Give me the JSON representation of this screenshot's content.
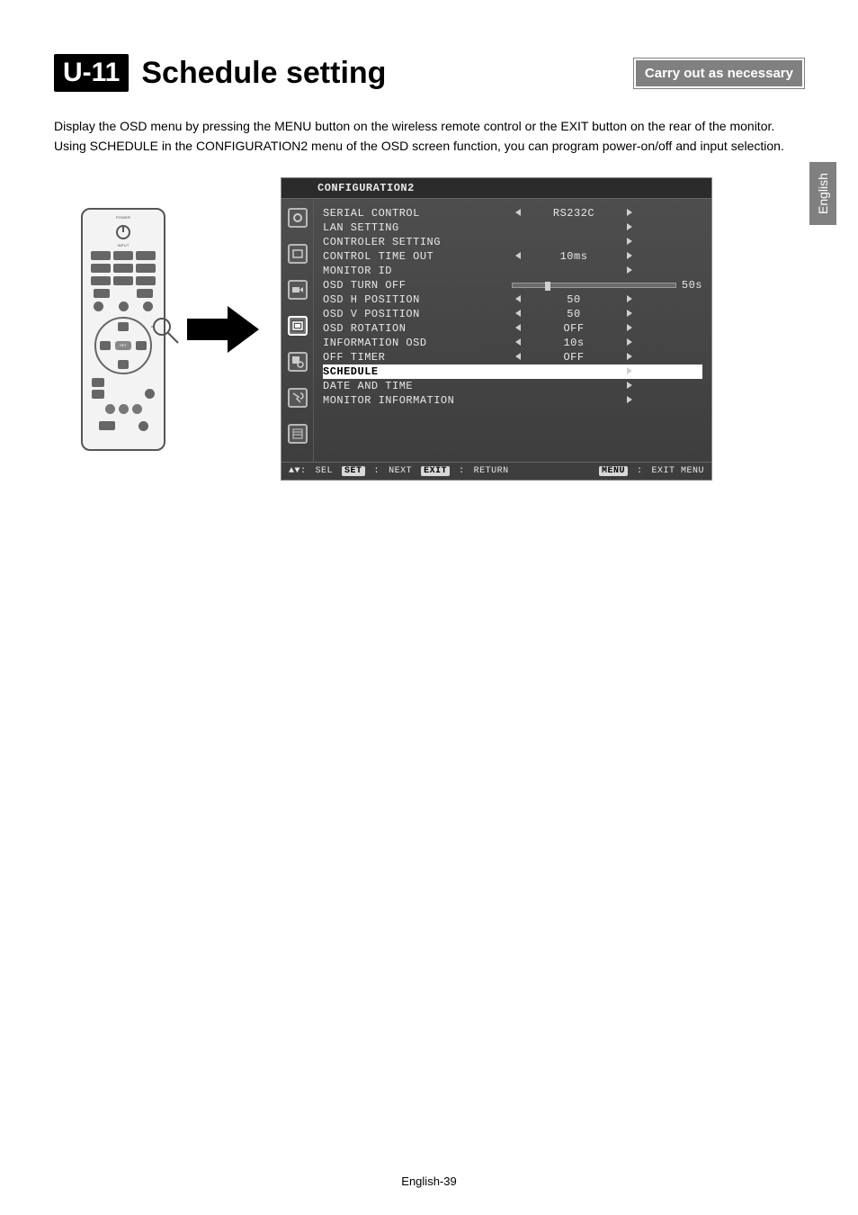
{
  "header": {
    "chip": "U-11",
    "title": "Schedule setting",
    "badge": "Carry out as necessary"
  },
  "intro": {
    "line1": "Display the OSD menu by pressing the MENU button on the wireless remote control or the EXIT button on the rear of the monitor.",
    "line2": "Using SCHEDULE in the CONFIGURATION2 menu of the OSD screen function, you can program power-on/off and input selection."
  },
  "sidetab": "English",
  "footer": "English-39",
  "osd": {
    "title": "CONFIGURATION2",
    "slider_label": "50s",
    "slider_pos_pct": 20,
    "footbar": {
      "sel": "SEL",
      "set": "SET",
      "next": "NEXT",
      "exit": "EXIT",
      "ret": "RETURN",
      "menu": "MENU",
      "exitmenu": "EXIT MENU"
    },
    "rows": [
      {
        "name": "SERIAL CONTROL",
        "left": true,
        "val": "RS232C",
        "right": true
      },
      {
        "name": "LAN SETTING",
        "left": false,
        "val": "",
        "right": true
      },
      {
        "name": "CONTROLER SETTING",
        "left": false,
        "val": "",
        "right": true
      },
      {
        "name": "CONTROL TIME OUT",
        "left": true,
        "val": "10ms",
        "right": true
      },
      {
        "name": "MONITOR ID",
        "left": false,
        "val": "",
        "right": true
      },
      {
        "name": "OSD TURN OFF",
        "slider": true
      },
      {
        "name": "OSD H POSITION",
        "left": true,
        "val": "50",
        "right": true
      },
      {
        "name": "OSD V POSITION",
        "left": true,
        "val": "50",
        "right": true
      },
      {
        "name": "OSD ROTATION",
        "left": true,
        "val": "OFF",
        "right": true
      },
      {
        "name": "INFORMATION OSD",
        "left": true,
        "val": "10s",
        "right": true
      },
      {
        "name": "OFF TIMER",
        "left": true,
        "val": "OFF",
        "right": true
      },
      {
        "name": "SCHEDULE",
        "left": false,
        "val": "",
        "right": true,
        "hi": true
      },
      {
        "name": "DATE AND TIME",
        "left": false,
        "val": "",
        "right": true
      },
      {
        "name": "MONITOR INFORMATION",
        "left": false,
        "val": "",
        "right": true
      }
    ]
  },
  "remote": {
    "labels": {
      "power": "POWER",
      "input": "INPUT",
      "set": "SET"
    }
  },
  "colors": {
    "chip_bg": "#000000",
    "badge_bg": "#808080",
    "osd_bg_top": "#4f4f4f",
    "osd_bg_bottom": "#3d3d3d",
    "osd_text": "#e8e8e8",
    "highlight_bg": "#ffffff",
    "highlight_text": "#000000"
  }
}
